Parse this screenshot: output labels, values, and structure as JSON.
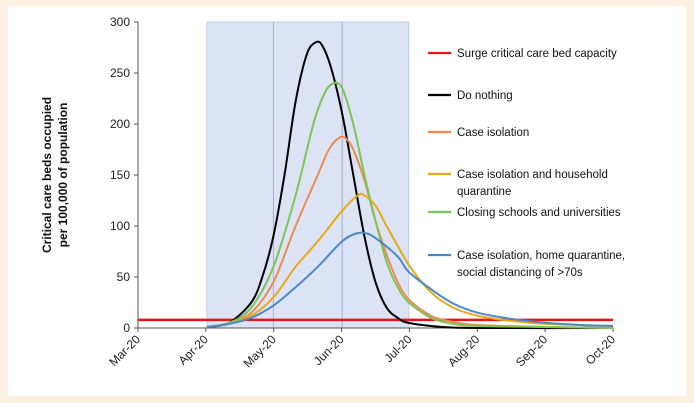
{
  "chart_data": {
    "type": "line",
    "ylabel_lines": [
      "Critical care beds occupied",
      "per 100,000 of population"
    ],
    "ylim": [
      0,
      300
    ],
    "yticks": [
      0,
      50,
      100,
      150,
      200,
      250,
      300
    ],
    "x_start": "2020-03-01",
    "x_end": "2020-10-01",
    "xticks": [
      "Mar-20",
      "Apr-20",
      "May-20",
      "Jun-20",
      "Jul-20",
      "Aug-20",
      "Sep-20",
      "Oct-20"
    ],
    "vertical_gridlines": [
      "2020-05-01",
      "2020-06-01"
    ],
    "shaded_region": {
      "start": "2020-04-01",
      "end": "2020-07-01",
      "color": "#dbe3f5"
    },
    "legend_position": "right",
    "series": [
      {
        "name": "Surge critical care bed capacity",
        "color": "#e8141a",
        "points": [
          [
            "2020-03-01",
            8
          ],
          [
            "2020-10-01",
            8
          ]
        ]
      },
      {
        "name": "Do nothing",
        "color": "#000000",
        "points": [
          [
            "2020-04-01",
            1
          ],
          [
            "2020-04-11",
            5
          ],
          [
            "2020-04-21",
            25
          ],
          [
            "2020-04-26",
            50
          ],
          [
            "2020-05-01",
            90
          ],
          [
            "2020-05-06",
            150
          ],
          [
            "2020-05-11",
            222
          ],
          [
            "2020-05-16",
            268
          ],
          [
            "2020-05-20",
            280
          ],
          [
            "2020-05-23",
            277
          ],
          [
            "2020-05-27",
            255
          ],
          [
            "2020-06-01",
            210
          ],
          [
            "2020-06-06",
            150
          ],
          [
            "2020-06-11",
            90
          ],
          [
            "2020-06-16",
            45
          ],
          [
            "2020-06-21",
            20
          ],
          [
            "2020-06-26",
            10
          ],
          [
            "2020-07-01",
            5
          ],
          [
            "2020-07-16",
            1
          ],
          [
            "2020-08-01",
            0
          ],
          [
            "2020-10-01",
            0
          ]
        ]
      },
      {
        "name": "Case isolation",
        "color": "#ef8a52",
        "points": [
          [
            "2020-04-01",
            1
          ],
          [
            "2020-04-11",
            5
          ],
          [
            "2020-04-21",
            15
          ],
          [
            "2020-05-01",
            45
          ],
          [
            "2020-05-11",
            100
          ],
          [
            "2020-05-21",
            150
          ],
          [
            "2020-05-26",
            175
          ],
          [
            "2020-05-31",
            187
          ],
          [
            "2020-06-03",
            185
          ],
          [
            "2020-06-06",
            175
          ],
          [
            "2020-06-11",
            145
          ],
          [
            "2020-06-16",
            105
          ],
          [
            "2020-06-21",
            72
          ],
          [
            "2020-06-26",
            45
          ],
          [
            "2020-07-01",
            28
          ],
          [
            "2020-07-11",
            12
          ],
          [
            "2020-07-21",
            6
          ],
          [
            "2020-08-01",
            3
          ],
          [
            "2020-09-01",
            1
          ],
          [
            "2020-10-01",
            0
          ]
        ]
      },
      {
        "name": "Case isolation and household quarantine",
        "color": "#e8a81a",
        "points": [
          [
            "2020-04-01",
            1
          ],
          [
            "2020-04-11",
            4
          ],
          [
            "2020-04-21",
            12
          ],
          [
            "2020-05-01",
            30
          ],
          [
            "2020-05-11",
            60
          ],
          [
            "2020-05-21",
            85
          ],
          [
            "2020-06-01",
            115
          ],
          [
            "2020-06-08",
            130
          ],
          [
            "2020-06-11",
            130
          ],
          [
            "2020-06-16",
            120
          ],
          [
            "2020-06-21",
            100
          ],
          [
            "2020-07-01",
            62
          ],
          [
            "2020-07-11",
            35
          ],
          [
            "2020-07-21",
            20
          ],
          [
            "2020-08-01",
            12
          ],
          [
            "2020-08-16",
            7
          ],
          [
            "2020-09-01",
            4
          ],
          [
            "2020-09-16",
            3
          ],
          [
            "2020-10-01",
            2
          ]
        ]
      },
      {
        "name": "Closing schools and universities",
        "color": "#7cc454",
        "points": [
          [
            "2020-04-01",
            1
          ],
          [
            "2020-04-11",
            5
          ],
          [
            "2020-04-21",
            20
          ],
          [
            "2020-05-01",
            60
          ],
          [
            "2020-05-11",
            130
          ],
          [
            "2020-05-19",
            200
          ],
          [
            "2020-05-24",
            230
          ],
          [
            "2020-05-28",
            240
          ],
          [
            "2020-06-01",
            235
          ],
          [
            "2020-06-06",
            200
          ],
          [
            "2020-06-11",
            150
          ],
          [
            "2020-06-16",
            105
          ],
          [
            "2020-06-21",
            65
          ],
          [
            "2020-06-26",
            40
          ],
          [
            "2020-07-01",
            25
          ],
          [
            "2020-07-11",
            10
          ],
          [
            "2020-07-21",
            4
          ],
          [
            "2020-08-01",
            2
          ],
          [
            "2020-09-01",
            1
          ],
          [
            "2020-10-01",
            0
          ]
        ]
      },
      {
        "name": "Case isolation, home quarantine, social distancing of >70s",
        "color": "#4a88c8",
        "points": [
          [
            "2020-04-01",
            1
          ],
          [
            "2020-04-11",
            4
          ],
          [
            "2020-04-21",
            10
          ],
          [
            "2020-05-01",
            22
          ],
          [
            "2020-05-11",
            40
          ],
          [
            "2020-05-21",
            60
          ],
          [
            "2020-06-01",
            85
          ],
          [
            "2020-06-08",
            93
          ],
          [
            "2020-06-13",
            92
          ],
          [
            "2020-06-18",
            85
          ],
          [
            "2020-06-26",
            70
          ],
          [
            "2020-07-01",
            55
          ],
          [
            "2020-07-11",
            38
          ],
          [
            "2020-07-21",
            24
          ],
          [
            "2020-08-01",
            15
          ],
          [
            "2020-08-16",
            9
          ],
          [
            "2020-09-01",
            5
          ],
          [
            "2020-09-16",
            3
          ],
          [
            "2020-10-01",
            2
          ]
        ]
      }
    ],
    "legend": [
      {
        "lines": [
          "Surge critical care bed capacity"
        ]
      },
      {
        "lines": [
          "Do nothing"
        ]
      },
      {
        "lines": [
          "Case isolation"
        ]
      },
      {
        "lines": [
          "Case isolation and household",
          "quarantine"
        ]
      },
      {
        "lines": [
          "Closing schools and universities"
        ]
      },
      {
        "lines": [
          "Case isolation, home quarantine,",
          "social distancing of >70s"
        ]
      }
    ]
  }
}
